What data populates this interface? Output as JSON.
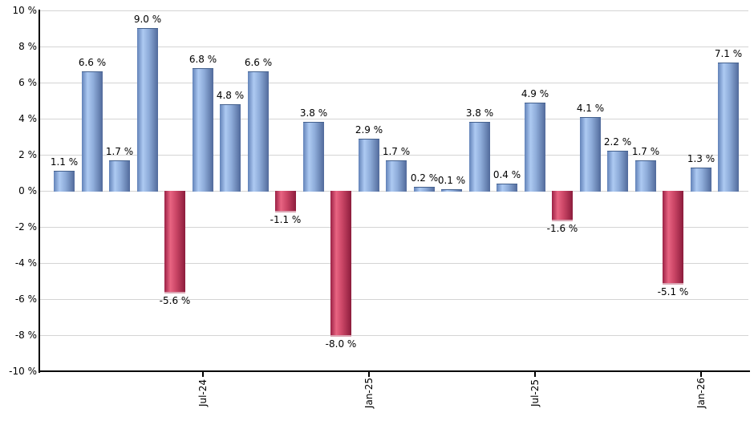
{
  "chart_data": {
    "type": "bar",
    "title": "",
    "xlabel": "",
    "ylabel": "",
    "ylim": [
      -10,
      10
    ],
    "grid": true,
    "values": [
      1.1,
      6.6,
      1.7,
      9.0,
      -5.6,
      6.8,
      4.8,
      6.6,
      -1.1,
      3.8,
      -8.0,
      2.9,
      1.7,
      0.2,
      0.1,
      3.8,
      0.4,
      4.9,
      -1.6,
      4.1,
      2.2,
      1.7,
      -5.1,
      1.3,
      7.1
    ],
    "bar_labels": [
      "1.1 %",
      "6.6 %",
      "1.7 %",
      "9.0 %",
      "-5.6 %",
      "6.8 %",
      "4.8 %",
      "6.6 %",
      "-1.1 %",
      "3.8 %",
      "-8.0 %",
      "2.9 %",
      "1.7 %",
      "0.2 %",
      "0.1 %",
      "3.8 %",
      "0.4 %",
      "4.9 %",
      "-1.6 %",
      "4.1 %",
      "2.2 %",
      "1.7 %",
      "-5.1 %",
      "1.3 %",
      "7.1 %"
    ],
    "y_tick_labels": [
      "10 %",
      "8 %",
      "6 %",
      "4 %",
      "2 %",
      "0 %",
      "-2 %",
      "-4 %",
      "-6 %",
      "-8 %",
      "-10 %"
    ],
    "x_ticks": [
      {
        "bar_index": 5,
        "label": "Jul-24"
      },
      {
        "bar_index": 11,
        "label": "Jan-25"
      },
      {
        "bar_index": 17,
        "label": "Jul-25"
      },
      {
        "bar_index": 23,
        "label": "Jan-26"
      }
    ],
    "positive_color": "#8fadda",
    "negative_color": "#cc4767"
  },
  "styles": {
    "positive_gradient": [
      {
        "color": "#6282b8",
        "stop": 0
      },
      {
        "color": "#adcaf2",
        "stop": 28
      },
      {
        "color": "#8fadda",
        "stop": 55
      },
      {
        "color": "#516a9b",
        "stop": 100
      }
    ],
    "negative_gradient": [
      {
        "color": "#9b2145",
        "stop": 0
      },
      {
        "color": "#e86482",
        "stop": 28
      },
      {
        "color": "#cc4767",
        "stop": 55
      },
      {
        "color": "#8c1c3c",
        "stop": 100
      }
    ],
    "grid_color": "#d4d4d4",
    "axis_color": "#000000",
    "text_color": "#000000"
  }
}
